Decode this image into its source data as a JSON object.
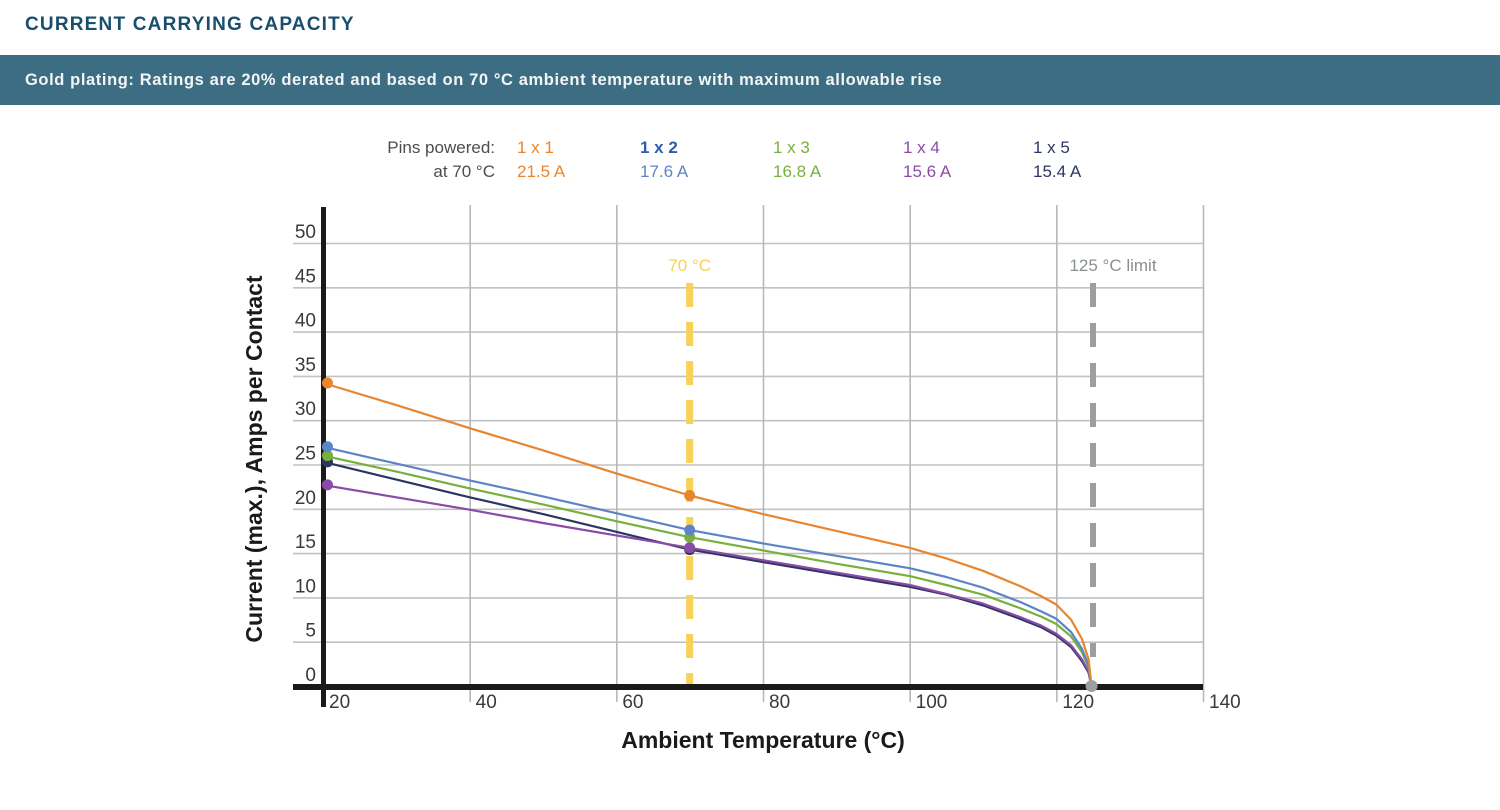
{
  "page": {
    "title": "CURRENT CARRYING CAPACITY",
    "banner": "Gold plating: Ratings are 20% derated and based on 70 °C ambient temperature with maximum allowable rise"
  },
  "colors": {
    "title_text": "#174F6C",
    "banner_bg": "#3C6D83",
    "banner_text": "#F3F6F7",
    "grid_h": "#C2C2C2",
    "grid_v": "#B8B8B8",
    "axis": "#1A1A1A",
    "tick_text": "#3A3A3A",
    "limit_70": "#F8D158",
    "limit_125": "#9B9FA2",
    "limit_125_text": "#8A8F92",
    "end_dot": "#9B9FA2"
  },
  "legend": {
    "row1_label": "Pins powered:",
    "row2_label": "at 70 °C",
    "entries": [
      {
        "label": "1 x 1",
        "value": "21.5 A",
        "label_color": "#E8862F",
        "value_color": "#E8862F",
        "weight": "normal"
      },
      {
        "label": "1 x 2",
        "value": "17.6 A",
        "label_color": "#2B5FAE",
        "value_color": "#5C84C6",
        "weight": "bold"
      },
      {
        "label": "1 x 3",
        "value": "16.8 A",
        "label_color": "#78B03C",
        "value_color": "#78B03C",
        "weight": "normal"
      },
      {
        "label": "1 x 4",
        "value": "15.6 A",
        "label_color": "#8A4BA8",
        "value_color": "#8A4BA8",
        "weight": "normal"
      },
      {
        "label": "1 x 5",
        "value": "15.4 A",
        "label_color": "#2D3561",
        "value_color": "#2D3561",
        "weight": "normal"
      }
    ]
  },
  "chart_data": {
    "type": "line",
    "xlabel": "Ambient Temperature (°C)",
    "ylabel": "Current (max.), Amps per Contact",
    "xlim": [
      20,
      140
    ],
    "ylim": [
      0,
      50
    ],
    "xticks": [
      20,
      40,
      60,
      80,
      100,
      120,
      140
    ],
    "yticks": [
      0,
      5,
      10,
      15,
      20,
      25,
      30,
      35,
      40,
      45,
      50
    ],
    "grid": true,
    "legend_position": "top",
    "x": [
      20,
      30,
      40,
      50,
      60,
      70,
      80,
      90,
      100,
      105,
      110,
      115,
      118,
      120,
      122,
      123.5,
      124.4,
      124.8
    ],
    "series": [
      {
        "name": "1 x 1",
        "color": "#E8862F",
        "rating_at_70C": 21.5,
        "values": [
          34.2,
          31.7,
          29.1,
          26.6,
          24.0,
          21.5,
          19.4,
          17.5,
          15.6,
          14.4,
          13.0,
          11.3,
          10.1,
          9.2,
          7.5,
          5.3,
          3.0,
          0
        ]
      },
      {
        "name": "1 x 2",
        "color": "#5C84C6",
        "rating_at_70C": 17.6,
        "values": [
          27.0,
          25.1,
          23.2,
          21.4,
          19.5,
          17.6,
          16.1,
          14.7,
          13.3,
          12.3,
          11.1,
          9.5,
          8.4,
          7.6,
          6.1,
          4.2,
          2.3,
          0
        ]
      },
      {
        "name": "1 x 3",
        "color": "#78B03C",
        "rating_at_70C": 16.8,
        "values": [
          26.0,
          24.2,
          22.3,
          20.5,
          18.6,
          16.8,
          15.3,
          13.8,
          12.4,
          11.4,
          10.3,
          8.8,
          7.8,
          7.0,
          5.6,
          3.8,
          2.1,
          0
        ]
      },
      {
        "name": "1 x 4",
        "color": "#8A4BA8",
        "rating_at_70C": 15.6,
        "values": [
          22.7,
          21.3,
          19.9,
          18.4,
          17.0,
          15.6,
          14.2,
          12.8,
          11.4,
          10.4,
          9.3,
          7.8,
          6.8,
          5.9,
          4.6,
          3.0,
          1.6,
          0
        ]
      },
      {
        "name": "1 x 5",
        "color": "#2D3561",
        "rating_at_70C": 15.4,
        "values": [
          25.3,
          23.3,
          21.3,
          19.4,
          17.4,
          15.4,
          14.0,
          12.6,
          11.2,
          10.3,
          9.1,
          7.6,
          6.6,
          5.7,
          4.4,
          2.8,
          1.5,
          0
        ]
      }
    ],
    "marker_x": [
      20,
      70
    ],
    "annotations": [
      {
        "label": "70 °C",
        "x": 70,
        "style": "dashed",
        "color": "#F8D158"
      },
      {
        "label": "125 °C limit",
        "x": 125,
        "style": "dashed",
        "color": "#9B9FA2"
      }
    ],
    "convergence_point": {
      "x": 124.8,
      "y": 0
    }
  }
}
